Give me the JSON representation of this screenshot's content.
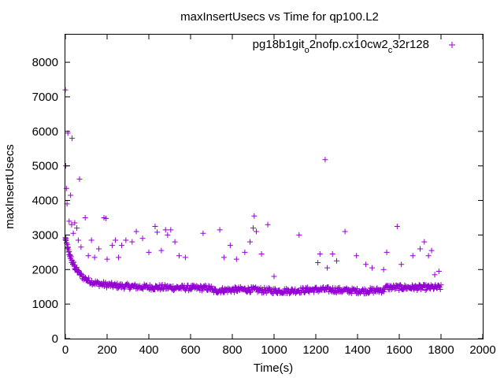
{
  "chart_data": {
    "type": "scatter",
    "title": "maxInsertUsecs vs Time for qp100.L2",
    "xlabel": "Time(s)",
    "ylabel": "maxInsertUsecs",
    "xlim": [
      0,
      2000
    ],
    "ylim": [
      0,
      8800
    ],
    "x_ticks": [
      0,
      200,
      400,
      600,
      800,
      1000,
      1200,
      1400,
      1600,
      1800,
      2000
    ],
    "y_ticks": [
      0,
      1000,
      2000,
      3000,
      4000,
      5000,
      6000,
      7000,
      8000
    ],
    "x_tick_labels": [
      "0",
      "200",
      "400",
      "600",
      "800",
      "1000",
      "1200",
      "1400",
      "1600",
      "1800",
      "2000"
    ],
    "y_tick_labels": [
      "0",
      "1000",
      "2000",
      "3000",
      "4000",
      "5000",
      "6000",
      "7000",
      "8000"
    ],
    "grid": false,
    "legend_position": "top-right",
    "marker": "plus",
    "series": [
      {
        "name_parts": [
          "pg18b1git",
          "o",
          "2nofp.cx10cw2",
          "c",
          "32r128"
        ],
        "color": "#9400d3",
        "outliers": [
          [
            0,
            7200
          ],
          [
            2,
            5000
          ],
          [
            5,
            4350
          ],
          [
            8,
            3900
          ],
          [
            12,
            5950
          ],
          [
            18,
            3400
          ],
          [
            25,
            4150
          ],
          [
            32,
            5800
          ],
          [
            30,
            3300
          ],
          [
            38,
            3050
          ],
          [
            45,
            3350
          ],
          [
            55,
            3200
          ],
          [
            62,
            2850
          ],
          [
            68,
            4620
          ],
          [
            75,
            2650
          ],
          [
            95,
            3500
          ],
          [
            110,
            2400
          ],
          [
            125,
            2850
          ],
          [
            140,
            2350
          ],
          [
            160,
            2600
          ],
          [
            185,
            3500
          ],
          [
            195,
            3480
          ],
          [
            200,
            2300
          ],
          [
            225,
            2700
          ],
          [
            240,
            2850
          ],
          [
            255,
            2350
          ],
          [
            270,
            2700
          ],
          [
            290,
            2850
          ],
          [
            320,
            2800
          ],
          [
            340,
            3100
          ],
          [
            370,
            2900
          ],
          [
            400,
            2500
          ],
          [
            430,
            3250
          ],
          [
            440,
            3080
          ],
          [
            460,
            2550
          ],
          [
            480,
            3150
          ],
          [
            490,
            3000
          ],
          [
            505,
            3150
          ],
          [
            525,
            2800
          ],
          [
            545,
            2400
          ],
          [
            575,
            2350
          ],
          [
            660,
            3050
          ],
          [
            740,
            3150
          ],
          [
            760,
            2350
          ],
          [
            790,
            2700
          ],
          [
            820,
            2300
          ],
          [
            860,
            2500
          ],
          [
            885,
            2800
          ],
          [
            900,
            3200
          ],
          [
            905,
            3550
          ],
          [
            915,
            3100
          ],
          [
            940,
            2450
          ],
          [
            970,
            3300
          ],
          [
            1000,
            1800
          ],
          [
            1120,
            3000
          ],
          [
            1210,
            2200
          ],
          [
            1220,
            2450
          ],
          [
            1245,
            5180
          ],
          [
            1255,
            2050
          ],
          [
            1280,
            2450
          ],
          [
            1300,
            2250
          ],
          [
            1340,
            3100
          ],
          [
            1395,
            2400
          ],
          [
            1440,
            2150
          ],
          [
            1470,
            2050
          ],
          [
            1525,
            2000
          ],
          [
            1540,
            2500
          ],
          [
            1590,
            3250
          ],
          [
            1610,
            2150
          ],
          [
            1665,
            2400
          ],
          [
            1700,
            2600
          ],
          [
            1720,
            2800
          ],
          [
            1740,
            2400
          ],
          [
            1755,
            2550
          ],
          [
            1770,
            1850
          ],
          [
            1790,
            1950
          ]
        ]
      }
    ]
  }
}
